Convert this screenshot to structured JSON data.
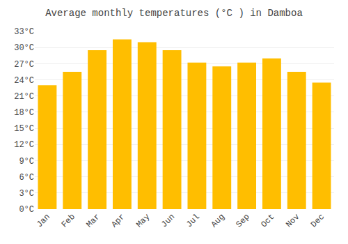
{
  "chart_data": {
    "type": "bar",
    "title": "Average monthly temperatures (°C ) in Damboa",
    "categories": [
      "Jan",
      "Feb",
      "Mar",
      "Apr",
      "May",
      "Jun",
      "Jul",
      "Aug",
      "Sep",
      "Oct",
      "Nov",
      "Dec"
    ],
    "values": [
      23.0,
      25.5,
      29.5,
      31.5,
      31.0,
      29.5,
      27.2,
      26.5,
      27.2,
      28.0,
      25.5,
      23.5
    ],
    "color": "#FFBE00",
    "ylim": [
      0,
      33
    ],
    "yticks": [
      {
        "value": 0,
        "label": "0°C"
      },
      {
        "value": 3,
        "label": "3°C"
      },
      {
        "value": 6,
        "label": "6°C"
      },
      {
        "value": 9,
        "label": "9°C"
      },
      {
        "value": 12,
        "label": "12°C"
      },
      {
        "value": 15,
        "label": "15°C"
      },
      {
        "value": 18,
        "label": "18°C"
      },
      {
        "value": 21,
        "label": "21°C"
      },
      {
        "value": 24,
        "label": "24°C"
      },
      {
        "value": 27,
        "label": "27°C"
      },
      {
        "value": 30,
        "label": "30°C"
      },
      {
        "value": 33,
        "label": "33°C"
      }
    ],
    "grid": true
  }
}
